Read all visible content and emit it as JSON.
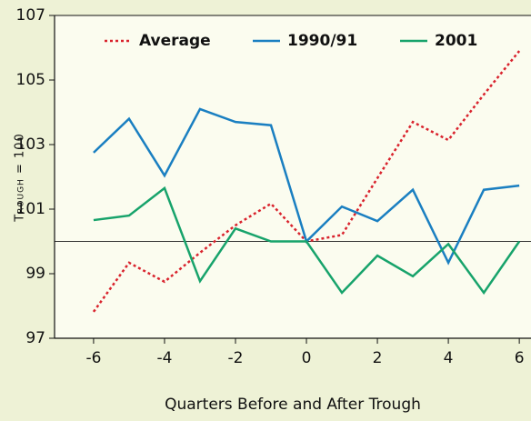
{
  "chart_data": {
    "type": "line",
    "x_label": "Quarters Before and After Trough",
    "y_label": "Trough = 100",
    "x": [
      -6,
      -5,
      -4,
      -3,
      -2,
      -1,
      0,
      1,
      2,
      3,
      4,
      5,
      6
    ],
    "series": [
      {
        "name": "Average",
        "color": "#d9232d",
        "dash": "dotted",
        "values": [
          97.82,
          99.34,
          98.75,
          99.65,
          100.5,
          101.17,
          100,
          100.2,
          101.96,
          103.7,
          103.14,
          104.55,
          105.9
        ]
      },
      {
        "name": "1990/91",
        "color": "#1a7fc1",
        "values": [
          102.75,
          103.8,
          102.04,
          104.1,
          103.7,
          103.6,
          100,
          101.08,
          100.63,
          101.6,
          99.34,
          101.6,
          101.73
        ]
      },
      {
        "name": "2001",
        "color": "#17a36b",
        "values": [
          100.66,
          100.8,
          101.65,
          98.77,
          100.4,
          100,
          100,
          98.41,
          99.56,
          98.92,
          99.92,
          98.41,
          100
        ]
      }
    ],
    "xlim": [
      -7.1,
      6.33
    ],
    "xticks": [
      -6,
      -4,
      -2,
      0,
      2,
      4,
      6
    ],
    "ylim": [
      97,
      107
    ],
    "yticks": [
      97,
      99,
      101,
      103,
      105,
      107
    ],
    "reference_line": 100
  }
}
